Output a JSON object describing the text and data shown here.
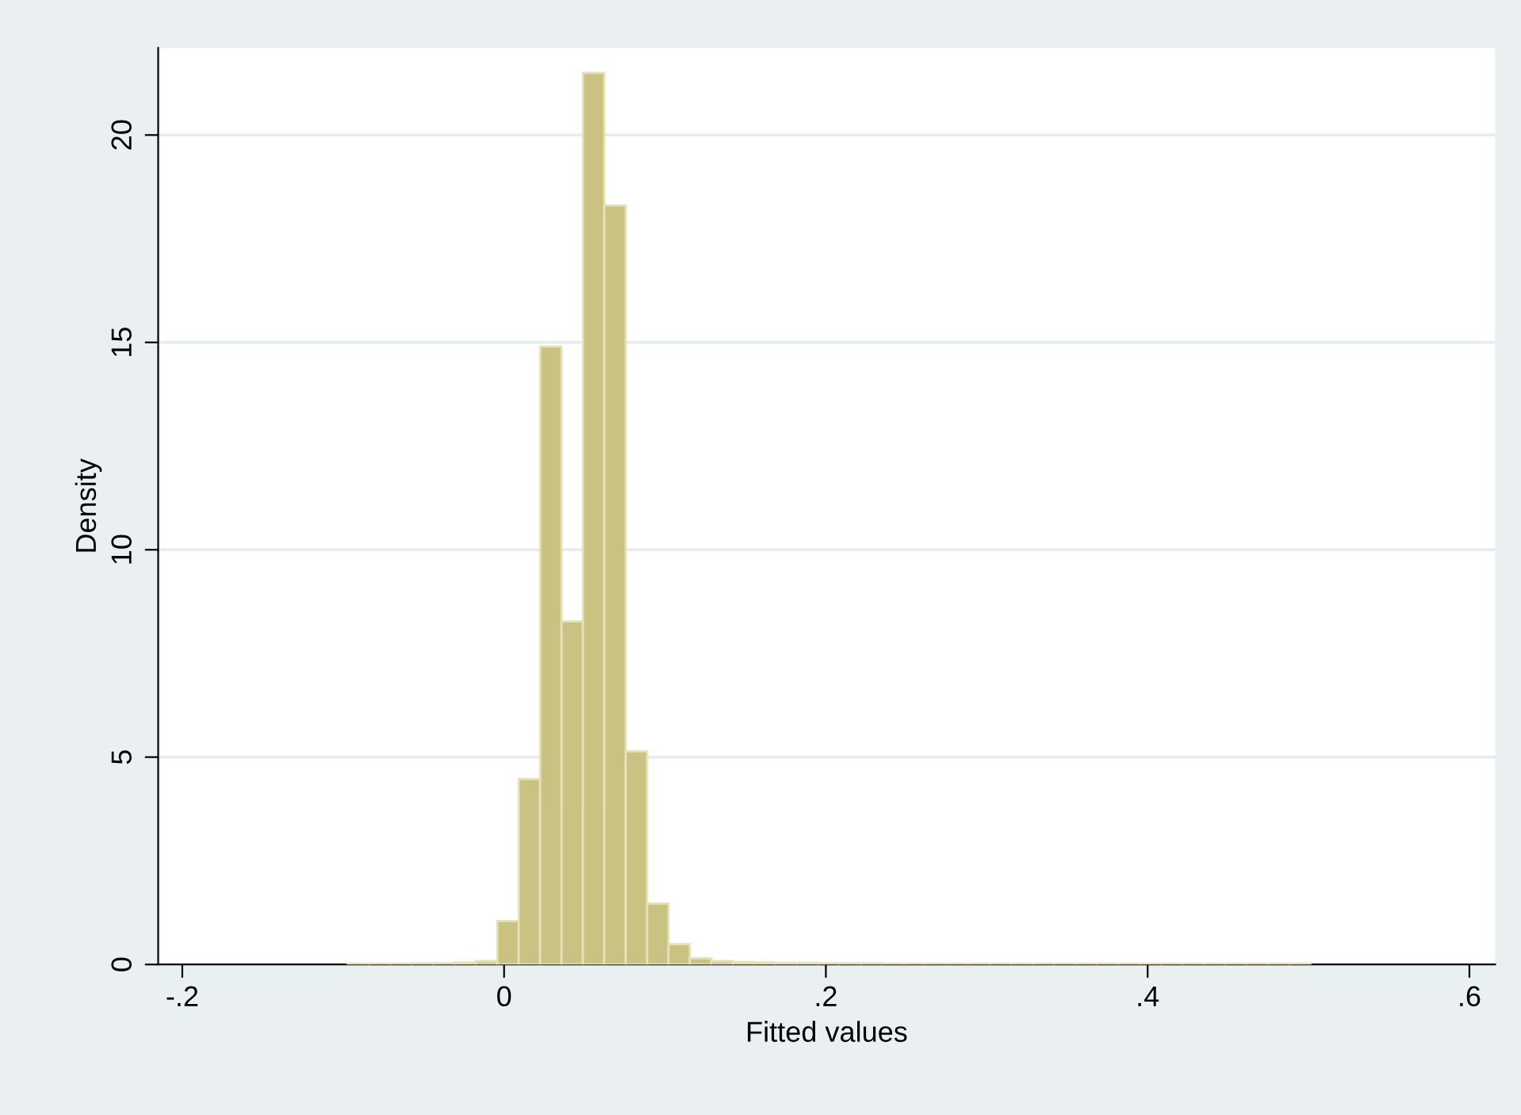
{
  "chart_data": {
    "type": "histogram",
    "xlabel": "Fitted values",
    "ylabel": "Density",
    "bins": [
      -0.0973,
      -0.084,
      -0.0707,
      -0.0574,
      -0.0441,
      -0.0308,
      -0.0175,
      -0.0042,
      0.0091,
      0.0224,
      0.0357,
      0.049,
      0.0623,
      0.0756,
      0.0889,
      0.1022,
      0.1155,
      0.1288,
      0.1421,
      0.1554,
      0.1687,
      0.182,
      0.1953,
      0.2086,
      0.2219,
      0.2352,
      0.2485,
      0.2618,
      0.2751,
      0.2884,
      0.3017,
      0.315,
      0.3283,
      0.3416,
      0.3549,
      0.3682,
      0.3815,
      0.3948,
      0.4081,
      0.4214,
      0.4347,
      0.448,
      0.4613,
      0.4746,
      0.4879,
      0.5012
    ],
    "values": [
      0.02,
      0.02,
      0.02,
      0.03,
      0.03,
      0.05,
      0.08,
      1.05,
      4.47,
      14.9,
      8.27,
      21.5,
      18.3,
      5.14,
      1.47,
      0.49,
      0.15,
      0.08,
      0.06,
      0.05,
      0.04,
      0.04,
      0.03,
      0.03,
      0.03,
      0.02,
      0.02,
      0.02,
      0.02,
      0.02,
      0.02,
      0.02,
      0.02,
      0.02,
      0.02,
      0.02,
      0.02,
      0.02,
      0.02,
      0.02,
      0.02,
      0.02,
      0.02,
      0.02,
      0.02
    ],
    "color": "#c9c282",
    "xlim": [
      -0.215,
      0.616
    ],
    "ylim": [
      0,
      22.1
    ],
    "xticks": [
      {
        "value": -0.2,
        "label": "-.2"
      },
      {
        "value": 0,
        "label": "0"
      },
      {
        "value": 0.2,
        "label": ".2"
      },
      {
        "value": 0.4,
        "label": ".4"
      },
      {
        "value": 0.6,
        "label": ".6"
      }
    ],
    "yticks": [
      0,
      5,
      10,
      15,
      20
    ],
    "grid": "y"
  }
}
